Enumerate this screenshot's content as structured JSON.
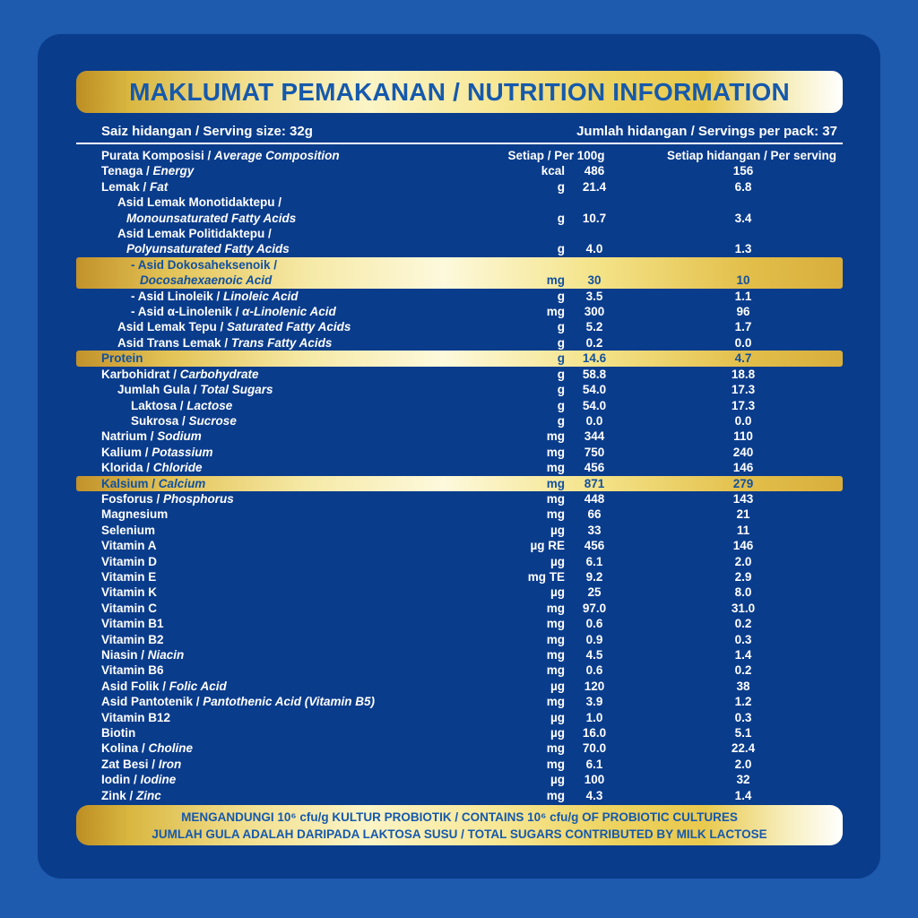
{
  "sep": " / ",
  "colors": {
    "outer_blue": "#1E5AAD",
    "panel_blue": "#0A3C8C",
    "banner_text_blue": "#1659AC",
    "highlight_text_blue": "#12509E",
    "text_white": "#FFFFFF",
    "gold_dark": "#C2922A",
    "gold_light": "#FBF4C6"
  },
  "title": "MAKLUMAT PEMAKANAN / NUTRITION INFORMATION",
  "serving": {
    "left": "Saiz hidangan / Serving size: 32g",
    "right": "Jumlah hidangan / Servings per pack: 37"
  },
  "table": {
    "header": {
      "label_ms": "Purata Komposisi",
      "label_en": "Average Composition",
      "col_per100": "Setiap / Per 100g",
      "col_serving": "Setiap hidangan / Per serving"
    },
    "rows": [
      {
        "ms": "Tenaga",
        "en": "Energy",
        "unit": "kcal",
        "per100": "486",
        "serving": "156",
        "indent": 0
      },
      {
        "ms": "Lemak",
        "en": "Fat",
        "unit": "g",
        "per100": "21.4",
        "serving": "6.8",
        "indent": 0
      },
      {
        "ms": "Asid Lemak Monotidaktepu /",
        "en": "Monounsaturated Fatty Acids",
        "unit": "g",
        "per100": "10.7",
        "serving": "3.4",
        "indent": 1,
        "twoline": true
      },
      {
        "ms": "Asid Lemak Politidaktepu /",
        "en": "Polyunsaturated Fatty Acids",
        "unit": "g",
        "per100": "4.0",
        "serving": "1.3",
        "indent": 1,
        "twoline": true
      },
      {
        "ms": "- Asid Dokosaheksenoik /",
        "en": "Docosahexaenoic Acid",
        "unit": "mg",
        "per100": "30",
        "serving": "10",
        "indent": 2,
        "twoline": true,
        "highlight": true
      },
      {
        "ms": "- Asid Linoleik",
        "en": "Linoleic Acid",
        "unit": "g",
        "per100": "3.5",
        "serving": "1.1",
        "indent": 2
      },
      {
        "ms": "- Asid α-Linolenik",
        "en": "α-Linolenic Acid",
        "unit": "mg",
        "per100": "300",
        "serving": "96",
        "indent": 2
      },
      {
        "ms": "Asid Lemak Tepu",
        "en": "Saturated Fatty Acids",
        "unit": "g",
        "per100": "5.2",
        "serving": "1.7",
        "indent": 1
      },
      {
        "ms": "Asid Trans Lemak",
        "en": "Trans Fatty Acids",
        "unit": "g",
        "per100": "0.2",
        "serving": "0.0",
        "indent": 1
      },
      {
        "ms": "Protein",
        "en": "",
        "unit": "g",
        "per100": "14.6",
        "serving": "4.7",
        "indent": 0,
        "highlight": true
      },
      {
        "ms": "Karbohidrat",
        "en": "Carbohydrate",
        "unit": "g",
        "per100": "58.8",
        "serving": "18.8",
        "indent": 0
      },
      {
        "ms": "Jumlah Gula",
        "en": "Total Sugars",
        "unit": "g",
        "per100": "54.0",
        "serving": "17.3",
        "indent": 1
      },
      {
        "ms": "Laktosa",
        "en": "Lactose",
        "unit": "g",
        "per100": "54.0",
        "serving": "17.3",
        "indent": 2
      },
      {
        "ms": "Sukrosa",
        "en": "Sucrose",
        "unit": "g",
        "per100": "0.0",
        "serving": "0.0",
        "indent": 2
      },
      {
        "ms": "Natrium",
        "en": "Sodium",
        "unit": "mg",
        "per100": "344",
        "serving": "110",
        "indent": 0
      },
      {
        "ms": "Kalium",
        "en": "Potassium",
        "unit": "mg",
        "per100": "750",
        "serving": "240",
        "indent": 0
      },
      {
        "ms": "Klorida",
        "en": "Chloride",
        "unit": "mg",
        "per100": "456",
        "serving": "146",
        "indent": 0
      },
      {
        "ms": "Kalsium",
        "en": "Calcium",
        "unit": "mg",
        "per100": "871",
        "serving": "279",
        "indent": 0,
        "highlight": true
      },
      {
        "ms": "Fosforus",
        "en": "Phosphorus",
        "unit": "mg",
        "per100": "448",
        "serving": "143",
        "indent": 0
      },
      {
        "ms": "Magnesium",
        "en": "",
        "unit": "mg",
        "per100": "66",
        "serving": "21",
        "indent": 0
      },
      {
        "ms": "Selenium",
        "en": "",
        "unit": "µg",
        "per100": "33",
        "serving": "11",
        "indent": 0
      },
      {
        "ms": "Vitamin A",
        "en": "",
        "unit": "µg RE",
        "per100": "456",
        "serving": "146",
        "indent": 0
      },
      {
        "ms": "Vitamin D",
        "en": "",
        "unit": "µg",
        "per100": "6.1",
        "serving": "2.0",
        "indent": 0
      },
      {
        "ms": "Vitamin E",
        "en": "",
        "unit": "mg TE",
        "per100": "9.2",
        "serving": "2.9",
        "indent": 0
      },
      {
        "ms": "Vitamin K",
        "en": "",
        "unit": "µg",
        "per100": "25",
        "serving": "8.0",
        "indent": 0
      },
      {
        "ms": "Vitamin C",
        "en": "",
        "unit": "mg",
        "per100": "97.0",
        "serving": "31.0",
        "indent": 0
      },
      {
        "ms": "Vitamin B1",
        "en": "",
        "unit": "mg",
        "per100": "0.6",
        "serving": "0.2",
        "indent": 0
      },
      {
        "ms": "Vitamin B2",
        "en": "",
        "unit": "mg",
        "per100": "0.9",
        "serving": "0.3",
        "indent": 0
      },
      {
        "ms": "Niasin",
        "en": "Niacin",
        "unit": "mg",
        "per100": "4.5",
        "serving": "1.4",
        "indent": 0
      },
      {
        "ms": "Vitamin B6",
        "en": "",
        "unit": "mg",
        "per100": "0.6",
        "serving": "0.2",
        "indent": 0
      },
      {
        "ms": "Asid Folik",
        "en": "Folic Acid",
        "unit": "µg",
        "per100": "120",
        "serving": "38",
        "indent": 0
      },
      {
        "ms": "Asid Pantotenik",
        "en": "Pantothenic Acid (Vitamin B5)",
        "unit": "mg",
        "per100": "3.9",
        "serving": "1.2",
        "indent": 0
      },
      {
        "ms": "Vitamin B12",
        "en": "",
        "unit": "µg",
        "per100": "1.0",
        "serving": "0.3",
        "indent": 0
      },
      {
        "ms": "Biotin",
        "en": "",
        "unit": "µg",
        "per100": "16.0",
        "serving": "5.1",
        "indent": 0
      },
      {
        "ms": "Kolina",
        "en": "Choline",
        "unit": "mg",
        "per100": "70.0",
        "serving": "22.4",
        "indent": 0
      },
      {
        "ms": "Zat Besi",
        "en": "Iron",
        "unit": "mg",
        "per100": "6.1",
        "serving": "2.0",
        "indent": 0
      },
      {
        "ms": "Iodin",
        "en": "Iodine",
        "unit": "µg",
        "per100": "100",
        "serving": "32",
        "indent": 0
      },
      {
        "ms": "Zink",
        "en": "Zinc",
        "unit": "mg",
        "per100": "4.3",
        "serving": "1.4",
        "indent": 0
      }
    ]
  },
  "footer": {
    "line1": "MENGANDUNGI 10⁶ cfu/g KULTUR PROBIOTIK / CONTAINS 10⁶ cfu/g OF PROBIOTIC CULTURES",
    "line2": "JUMLAH GULA ADALAH DARIPADA LAKTOSA SUSU / TOTAL SUGARS CONTRIBUTED BY MILK LACTOSE"
  }
}
